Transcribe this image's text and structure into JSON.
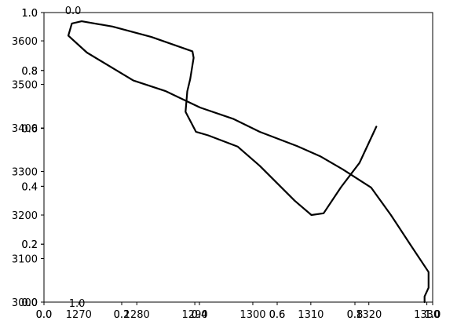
{
  "chart_data": {
    "type": "line",
    "title": "",
    "xlabel": "",
    "ylabel": "",
    "primary_x_axis": {
      "lim": [
        1264,
        1331
      ],
      "tick_values": [
        1270,
        1280,
        1290,
        1300,
        1310,
        1320,
        1330
      ],
      "tick_labels": [
        "1270",
        "1280",
        "1290",
        "1300",
        "1310",
        "1320",
        "1330"
      ]
    },
    "primary_y_axis": {
      "lim": [
        3000,
        3665
      ],
      "tick_values": [
        3000,
        3100,
        3200,
        3300,
        3400,
        3500,
        3600
      ],
      "tick_labels": [
        "3000",
        "3100",
        "3200",
        "3300",
        "3400",
        "3500",
        "3600"
      ]
    },
    "overlay_axes": [
      {
        "x_tick_values": [
          0.0,
          0.2,
          0.4,
          0.6,
          0.8,
          1.0
        ],
        "x_tick_labels": [
          "0.0",
          "0.2",
          "0.4",
          "0.6",
          "0.8",
          "1.0"
        ],
        "y_tick_values": [
          0.0,
          0.2,
          0.4,
          0.6,
          0.8,
          1.0
        ],
        "y_tick_labels": [
          "0.0",
          "0.2",
          "0.4",
          "0.6",
          "0.8",
          "1.0"
        ]
      },
      {
        "x_tick_values": [
          0.0,
          0.2,
          0.4,
          0.6,
          0.8,
          1.0
        ],
        "x_tick_labels": [
          "0.0",
          "0.2",
          "0.4",
          "0.6",
          "0.8",
          "1.0"
        ],
        "y_tick_values": [
          0.0,
          0.2,
          0.4,
          0.6,
          0.8,
          1.0
        ],
        "y_tick_labels": [
          "0.0",
          "0.2",
          "0.4",
          "0.6",
          "0.8",
          "1.0"
        ]
      }
    ],
    "extra_labels": [
      "0.0",
      "1.0"
    ],
    "series": [
      {
        "color": "#000000",
        "x": [
          1329.6,
          1329.6,
          1330.3,
          1330.3,
          1327.4,
          1323.8,
          1320.4,
          1315.5,
          1311.6,
          1307.7,
          1301.2,
          1296.6,
          1290.9,
          1284.9,
          1279.4,
          1271.4,
          1268.2,
          1268.8,
          1270.5,
          1275.8,
          1282.5,
          1289.6,
          1289.8,
          1289.2,
          1288.7,
          1288.4,
          1290.2,
          1292.3,
          1297.4,
          1301.2,
          1307.2,
          1310.1,
          1312.2,
          1315.2,
          1318.4,
          1321.3
        ],
        "y": [
          3000,
          3013,
          3033,
          3069,
          3127,
          3200,
          3263,
          3305,
          3335,
          3358,
          3391,
          3421,
          3447,
          3485,
          3509,
          3573,
          3612,
          3640,
          3645,
          3633,
          3609,
          3576,
          3561,
          3512,
          3484,
          3437,
          3391,
          3383,
          3357,
          3313,
          3233,
          3200,
          3204,
          3264,
          3320,
          3403
        ]
      }
    ]
  }
}
